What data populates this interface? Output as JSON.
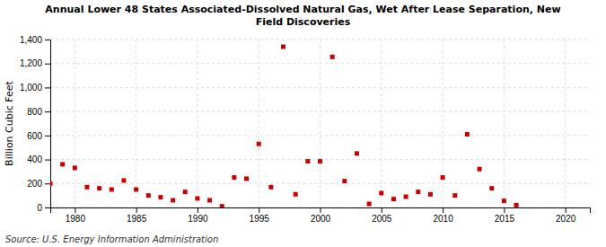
{
  "chart_data": {
    "type": "scatter",
    "title": "Annual Lower 48 States Associated-Dissolved Natural Gas, Wet After Lease Separation, New\nField Discoveries",
    "y_label": "Billion Cubic Feet",
    "source": "Source: U.S. Energy Information Administration",
    "color": "#cc0000",
    "marker": "square",
    "grid": true,
    "xlim": [
      1978,
      2022
    ],
    "xticks": [
      1980,
      1985,
      1990,
      1995,
      2000,
      2005,
      2010,
      2015,
      2020
    ],
    "ylim": [
      0,
      1400
    ],
    "yticks": [
      0,
      200,
      400,
      600,
      800,
      {
        "value": 1000,
        "label": "1,000"
      },
      {
        "value": 1200,
        "label": "1,200"
      },
      {
        "value": 1400,
        "label": "1,400"
      }
    ],
    "x": [
      1978,
      1979,
      1980,
      1981,
      1982,
      1983,
      1984,
      1985,
      1986,
      1987,
      1988,
      1989,
      1990,
      1991,
      1992,
      1993,
      1994,
      1995,
      1996,
      1997,
      1998,
      1999,
      2000,
      2001,
      2002,
      2003,
      2004,
      2005,
      2006,
      2007,
      2008,
      2009,
      2010,
      2011,
      2012,
      2013,
      2014,
      2015,
      2016
    ],
    "values": [
      200,
      360,
      330,
      170,
      160,
      150,
      225,
      150,
      100,
      85,
      60,
      130,
      75,
      60,
      10,
      250,
      240,
      530,
      170,
      1340,
      110,
      385,
      385,
      1255,
      220,
      450,
      30,
      120,
      70,
      90,
      130,
      110,
      250,
      100,
      610,
      320,
      160,
      55,
      20
    ]
  }
}
